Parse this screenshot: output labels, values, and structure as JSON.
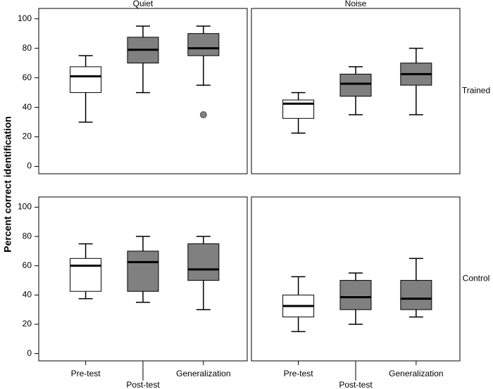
{
  "chart_data": {
    "type": "box",
    "ylabel": "Percent correct identification",
    "columns": [
      "Quiet",
      "Noise"
    ],
    "rows": [
      "Trained",
      "Control"
    ],
    "categories": [
      "Pre-test",
      "Post-test",
      "Generalization"
    ],
    "colors": [
      "#ffffff",
      "#808080",
      "#808080"
    ],
    "ylim": [
      -5,
      107
    ],
    "yticks": [
      0,
      20,
      40,
      60,
      80,
      100
    ],
    "panels": [
      [
        {
          "boxes": [
            {
              "min": 30,
              "q1": 50,
              "median": 61,
              "q3": 67.5,
              "max": 75,
              "outliers": []
            },
            {
              "min": 50,
              "q1": 70,
              "median": 79,
              "q3": 87.5,
              "max": 95,
              "outliers": []
            },
            {
              "min": 55,
              "q1": 75,
              "median": 80,
              "q3": 90,
              "max": 95,
              "outliers": [
                35
              ]
            }
          ]
        },
        {
          "boxes": [
            {
              "min": 22.5,
              "q1": 32.5,
              "median": 42.5,
              "q3": 45,
              "max": 50,
              "outliers": []
            },
            {
              "min": 35,
              "q1": 47.5,
              "median": 56,
              "q3": 62.5,
              "max": 67.5,
              "outliers": []
            },
            {
              "min": 35,
              "q1": 55,
              "median": 62.5,
              "q3": 70,
              "max": 80,
              "outliers": []
            }
          ]
        }
      ],
      [
        {
          "boxes": [
            {
              "min": 37.5,
              "q1": 42.5,
              "median": 60,
              "q3": 65,
              "max": 75,
              "outliers": []
            },
            {
              "min": 35,
              "q1": 42.5,
              "median": 62.5,
              "q3": 70,
              "max": 80,
              "outliers": []
            },
            {
              "min": 30,
              "q1": 50,
              "median": 57.5,
              "q3": 75,
              "max": 80,
              "outliers": []
            }
          ]
        },
        {
          "boxes": [
            {
              "min": 15,
              "q1": 25,
              "median": 32.5,
              "q3": 40,
              "max": 52.5,
              "outliers": []
            },
            {
              "min": 20,
              "q1": 30,
              "median": 38.5,
              "q3": 50,
              "max": 55,
              "outliers": []
            },
            {
              "min": 25,
              "q1": 30,
              "median": 37.5,
              "q3": 50,
              "max": 65,
              "outliers": []
            }
          ]
        }
      ]
    ]
  }
}
